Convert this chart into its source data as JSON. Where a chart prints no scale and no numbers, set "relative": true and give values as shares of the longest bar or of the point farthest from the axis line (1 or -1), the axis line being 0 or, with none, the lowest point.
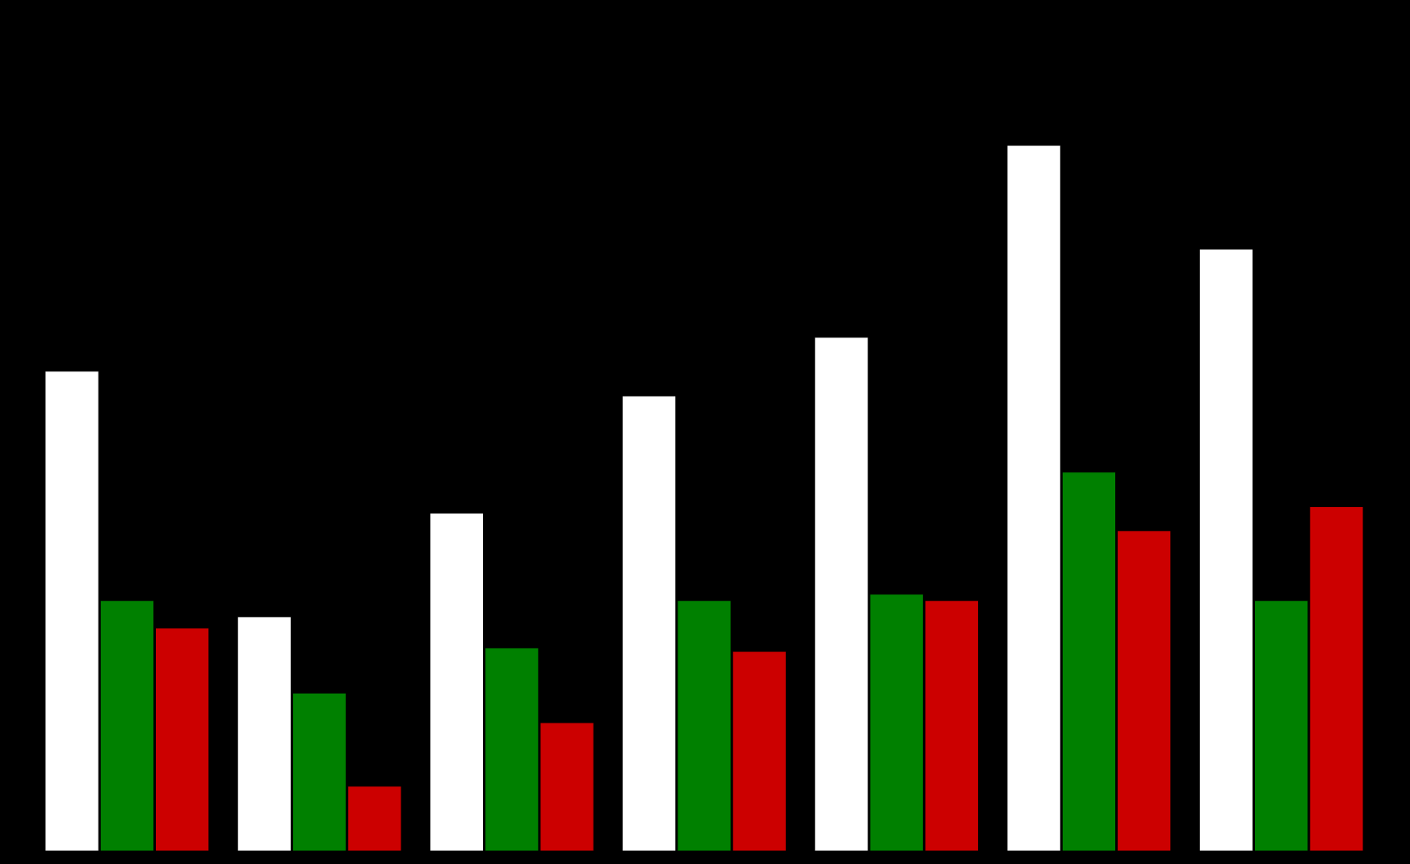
{
  "chart_data": {
    "type": "bar",
    "relative": true,
    "categories": [
      null,
      null,
      null,
      null,
      null,
      null,
      null
    ],
    "series": [
      {
        "color": "#ffffff",
        "values": [
          0.68,
          0.332,
          0.479,
          0.645,
          0.728,
          1,
          0.853
        ]
      },
      {
        "color": "#008000",
        "values": [
          0.355,
          0.224,
          0.288,
          0.355,
          0.364,
          0.537,
          0.355
        ]
      },
      {
        "color": "#cc0000",
        "values": [
          0.316,
          0.092,
          0.182,
          0.283,
          0.355,
          0.454,
          0.488
        ]
      }
    ]
  }
}
